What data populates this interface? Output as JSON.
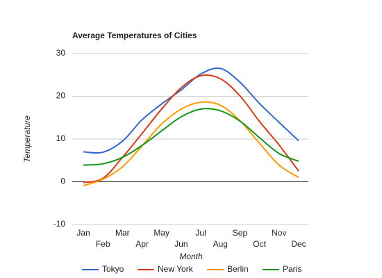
{
  "chart_data": {
    "type": "line",
    "title": "Average Temperatures of Cities",
    "x_label": "Month",
    "y_label": "Temperature",
    "categories": [
      "Jan",
      "Feb",
      "Mar",
      "Apr",
      "May",
      "Jun",
      "Jul",
      "Aug",
      "Sep",
      "Oct",
      "Nov",
      "Dec"
    ],
    "series": [
      {
        "name": "Tokyo",
        "color": "#3366cc",
        "values": [
          7.0,
          6.9,
          9.5,
          14.5,
          18.2,
          21.5,
          25.2,
          26.5,
          23.3,
          18.3,
          13.9,
          9.6
        ]
      },
      {
        "name": "New York",
        "color": "#dc3912",
        "values": [
          -0.2,
          0.8,
          5.7,
          11.3,
          17.0,
          22.0,
          24.8,
          24.1,
          20.1,
          14.1,
          8.6,
          2.5
        ]
      },
      {
        "name": "Berlin",
        "color": "#ff9900",
        "values": [
          -0.9,
          0.6,
          3.5,
          8.4,
          13.5,
          17.0,
          18.6,
          17.9,
          14.3,
          9.0,
          3.9,
          1.0
        ]
      },
      {
        "name": "Paris",
        "color": "#109618",
        "values": [
          3.9,
          4.2,
          5.7,
          8.5,
          11.9,
          15.2,
          17.0,
          16.6,
          14.2,
          10.3,
          6.6,
          4.8
        ]
      }
    ],
    "ylim": [
      -10,
      30
    ],
    "yticks": [
      -10,
      0,
      10,
      20,
      30
    ],
    "grid": true,
    "legend": "bottom",
    "smooth": true
  }
}
